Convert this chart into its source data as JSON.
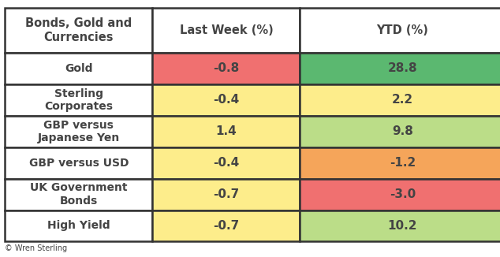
{
  "header": [
    "Bonds, Gold and\nCurrencies",
    "Last Week (%)",
    "YTD (%)"
  ],
  "rows": [
    {
      "label": "Gold",
      "last_week": "-0.8",
      "ytd": "28.8",
      "lw_color": "#F07070",
      "ytd_color": "#5BB870"
    },
    {
      "label": "Sterling\nCorporates",
      "last_week": "-0.4",
      "ytd": "2.2",
      "lw_color": "#FDED8B",
      "ytd_color": "#FDED8B"
    },
    {
      "label": "GBP versus\nJapanese Yen",
      "last_week": "1.4",
      "ytd": "9.8",
      "lw_color": "#FDED8B",
      "ytd_color": "#BBDD88"
    },
    {
      "label": "GBP versus USD",
      "last_week": "-0.4",
      "ytd": "-1.2",
      "lw_color": "#FDED8B",
      "ytd_color": "#F5A55A"
    },
    {
      "label": "UK Government\nBonds",
      "last_week": "-0.7",
      "ytd": "-3.0",
      "lw_color": "#FDED8B",
      "ytd_color": "#F07070"
    },
    {
      "label": "High Yield",
      "last_week": "-0.7",
      "ytd": "10.2",
      "lw_color": "#FDED8B",
      "ytd_color": "#BBDD88"
    }
  ],
  "header_bg": "#FFFFFF",
  "label_col_bg": "#FFFFFF",
  "border_color": "#333333",
  "text_color": "#444444",
  "footer_text": "© Wren Sterling",
  "figsize": [
    6.34,
    3.26
  ],
  "dpi": 100,
  "font_size_header": 10.5,
  "font_size_data": 11,
  "font_size_label": 10,
  "font_size_footer": 7
}
